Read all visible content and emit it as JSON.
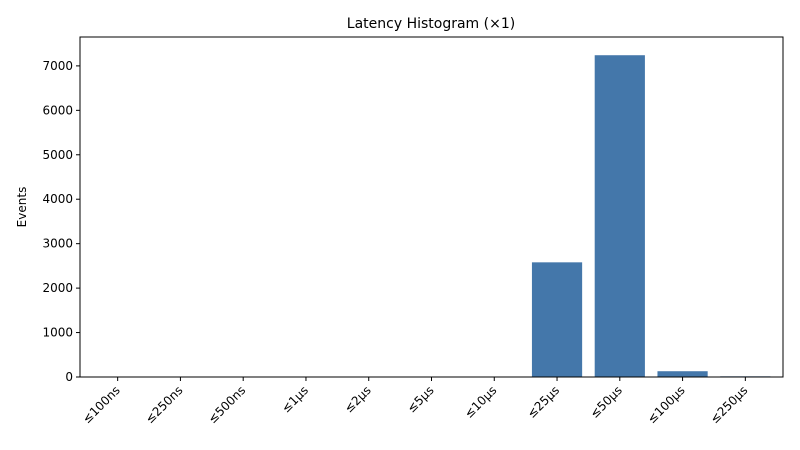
{
  "chart_data": {
    "type": "bar",
    "title": "Latency Histogram (×1)",
    "xlabel": "",
    "ylabel": "Events",
    "categories": [
      "≤100ns",
      "≤250ns",
      "≤500ns",
      "≤1µs",
      "≤2µs",
      "≤5µs",
      "≤10µs",
      "≤25µs",
      "≤50µs",
      "≤100µs",
      "≤250µs"
    ],
    "values": [
      0,
      0,
      0,
      0,
      0,
      0,
      0,
      2580,
      7240,
      130,
      15
    ],
    "ylim": [
      0,
      7650
    ],
    "yticks": [
      0,
      1000,
      2000,
      3000,
      4000,
      5000,
      6000,
      7000
    ],
    "grid": false,
    "bar_color": "#4477aa"
  }
}
